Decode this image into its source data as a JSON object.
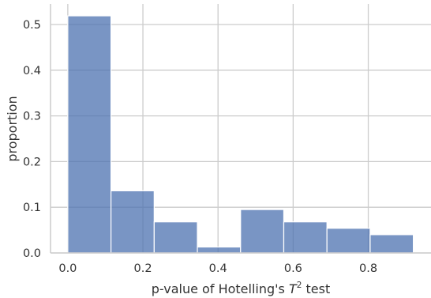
{
  "chart_data": {
    "type": "bar",
    "xlabel": {
      "prefix": "p-value of Hotelling's ",
      "symbol": "T",
      "superscript": "2",
      "suffix": " test"
    },
    "ylabel": "proportion",
    "xlim": [
      -0.046,
      0.967
    ],
    "ylim": [
      0,
      0.545
    ],
    "grid": true,
    "bar_color": "#4c72b0",
    "bins": [
      {
        "x0": 0.0,
        "x1": 0.115,
        "value": 0.519
      },
      {
        "x0": 0.115,
        "x1": 0.23,
        "value": 0.136
      },
      {
        "x0": 0.23,
        "x1": 0.345,
        "value": 0.068
      },
      {
        "x0": 0.345,
        "x1": 0.46,
        "value": 0.013
      },
      {
        "x0": 0.46,
        "x1": 0.575,
        "value": 0.095
      },
      {
        "x0": 0.575,
        "x1": 0.69,
        "value": 0.068
      },
      {
        "x0": 0.69,
        "x1": 0.805,
        "value": 0.054
      },
      {
        "x0": 0.805,
        "x1": 0.92,
        "value": 0.04
      }
    ],
    "xticks": [
      {
        "value": 0.0,
        "label": "0.0"
      },
      {
        "value": 0.2,
        "label": "0.2"
      },
      {
        "value": 0.4,
        "label": "0.4"
      },
      {
        "value": 0.6,
        "label": "0.6"
      },
      {
        "value": 0.8,
        "label": "0.8"
      }
    ],
    "yticks": [
      {
        "value": 0.0,
        "label": "0.0"
      },
      {
        "value": 0.1,
        "label": "0.1"
      },
      {
        "value": 0.2,
        "label": "0.2"
      },
      {
        "value": 0.3,
        "label": "0.3"
      },
      {
        "value": 0.4,
        "label": "0.4"
      },
      {
        "value": 0.5,
        "label": "0.5"
      }
    ]
  }
}
